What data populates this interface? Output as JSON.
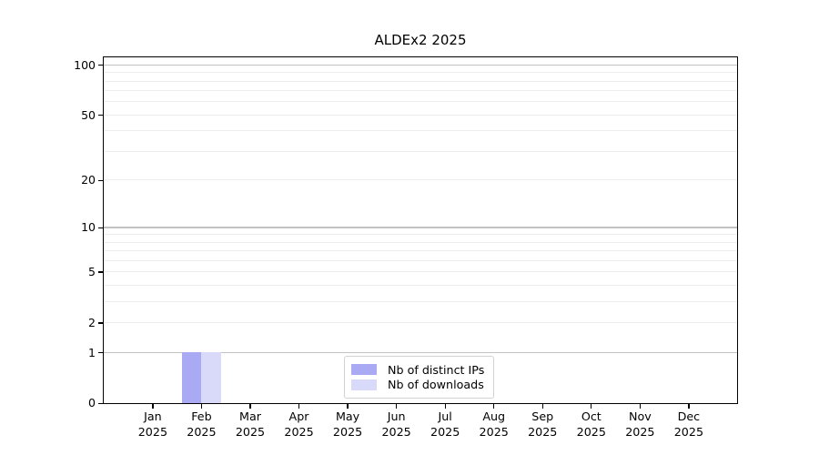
{
  "chart_data": {
    "type": "bar",
    "title": "ALDEx2 2025",
    "categories": [
      "Jan",
      "Feb",
      "Mar",
      "Apr",
      "May",
      "Jun",
      "Jul",
      "Aug",
      "Sep",
      "Oct",
      "Nov",
      "Dec"
    ],
    "category_year": "2025",
    "series": [
      {
        "name": "Nb of distinct IPs",
        "color": "#a9a9f4",
        "values": [
          0,
          1,
          0,
          0,
          0,
          0,
          0,
          0,
          0,
          0,
          0,
          0
        ]
      },
      {
        "name": "Nb of downloads",
        "color": "#d9d9f9",
        "values": [
          0,
          1,
          0,
          0,
          0,
          0,
          0,
          0,
          0,
          0,
          0,
          0
        ]
      }
    ],
    "yscale": "log1p",
    "ylim": [
      0,
      111
    ],
    "y_major_ticks": [
      0,
      1,
      2,
      5,
      10,
      20,
      50,
      100
    ],
    "y_minor_ticks": [
      3,
      4,
      6,
      7,
      8,
      9,
      30,
      40,
      60,
      70,
      80,
      90
    ],
    "y_emphasized_gridlines": [
      1,
      10,
      100
    ],
    "grid": "horizontal",
    "legend_position": "lower-center",
    "colors": {
      "grid_minor": "#ededed",
      "grid_major_emphasized": "#c2c2c2",
      "axis": "#000000",
      "text": "#000000",
      "legend_border": "#d2d2d2"
    }
  }
}
